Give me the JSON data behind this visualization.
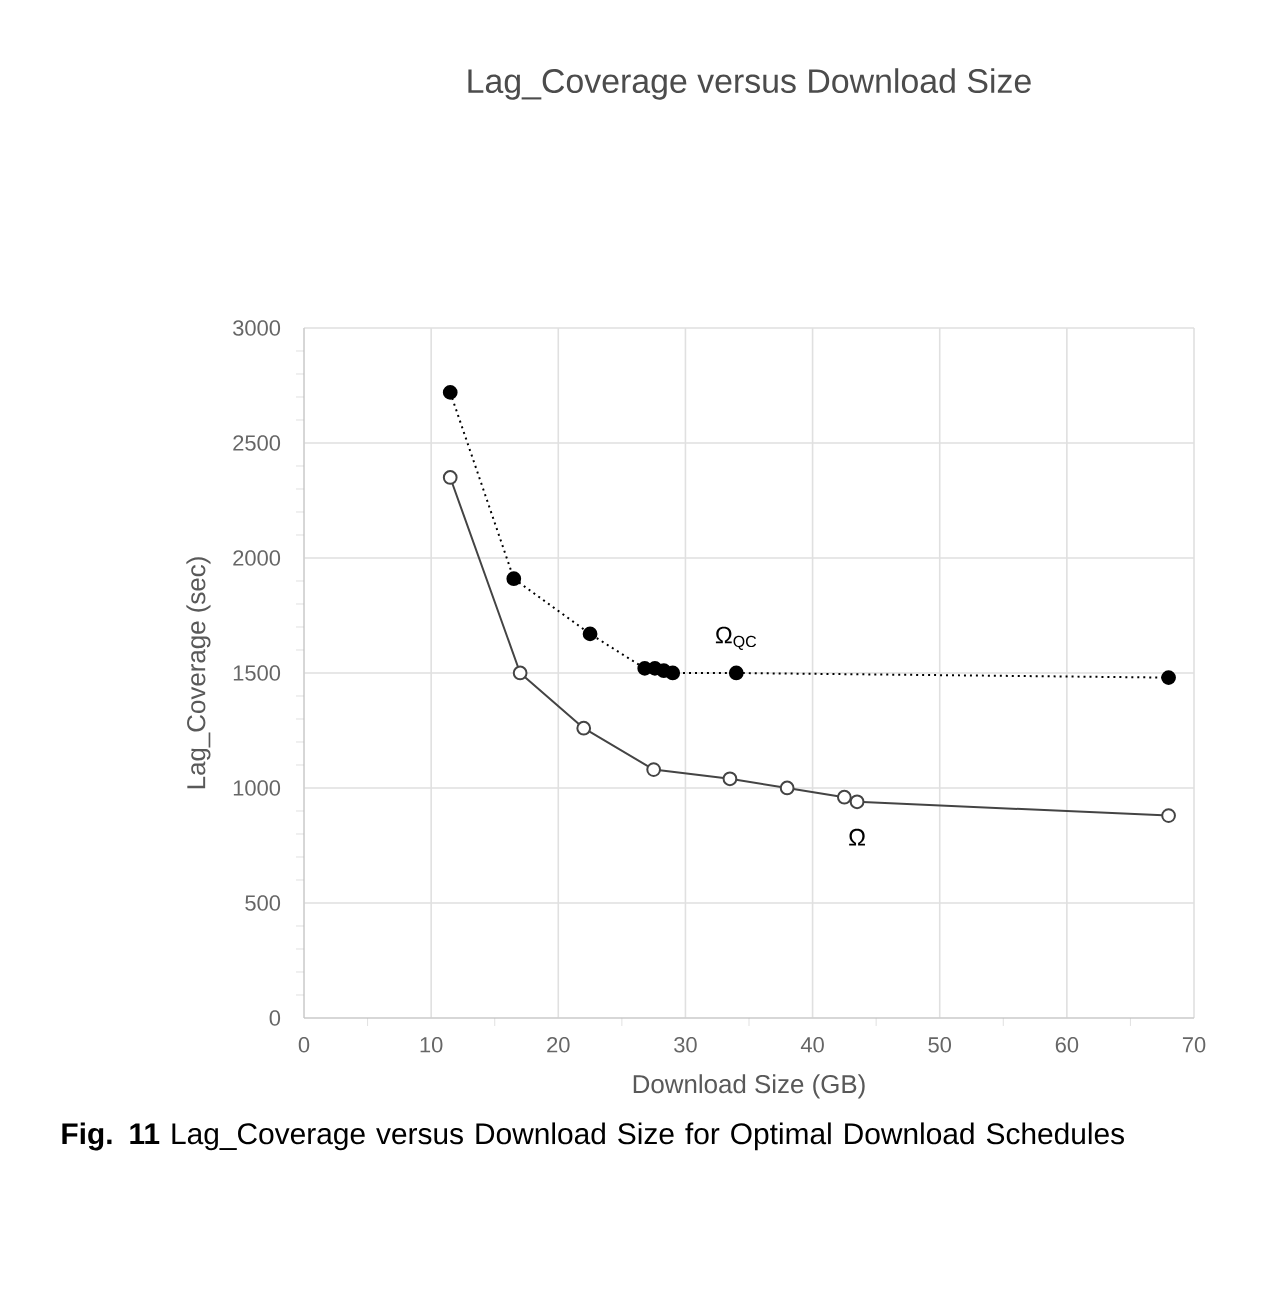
{
  "chart_data": {
    "type": "line",
    "title": "Lag_Coverage versus Download Size",
    "xlabel": "Download Size (GB)",
    "ylabel": "Lag_Coverage (sec)",
    "series": [
      {
        "name": "Ω$_{QC}$",
        "color": "#000000",
        "marker": "circle",
        "line_style": "dotted",
        "x": [
          11.5,
          16.5,
          22.5,
          26.8,
          27.6,
          28.3,
          29,
          34,
          68
        ],
        "values": [
          2720,
          1910,
          1670,
          1520,
          1520,
          1510,
          1500,
          1500,
          1480
        ]
      },
      {
        "name": "Ω",
        "color": "#444444",
        "marker": "circle",
        "line_style": "solid",
        "x": [
          11.5,
          17,
          22,
          27.5,
          33.5,
          38,
          42.5,
          43.5,
          68
        ],
        "values": [
          2350,
          1500,
          1260,
          1080,
          1040,
          1000,
          960,
          940,
          880
        ]
      }
    ],
    "xlim": [
      0,
      70
    ],
    "xticks": [
      0,
      10,
      20,
      30,
      40,
      50,
      60,
      70
    ],
    "ylim": [
      0,
      3000
    ],
    "yticks": [
      0,
      500,
      1000,
      1500,
      2000,
      2500,
      3000
    ],
    "grid": true,
    "annotations": [
      "**Fig. 11** Lag_Coverage versus Download Size for Optimal Download Schedules"
    ]
  }
}
